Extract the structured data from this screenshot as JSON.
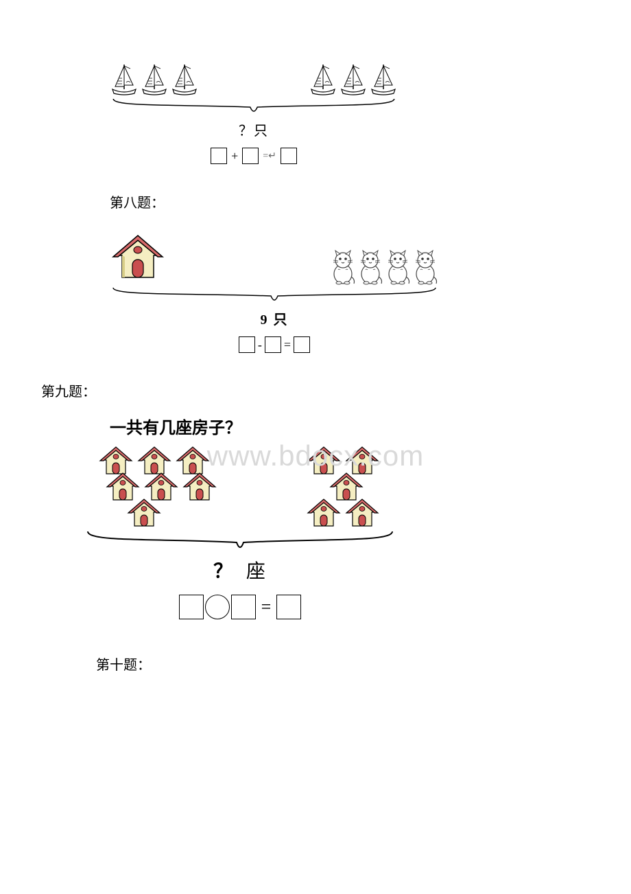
{
  "watermark": "www.bdocx.com",
  "q7": {
    "left_count": 3,
    "right_count": 3,
    "caption": "？只",
    "op_plus": "+",
    "op_eq_arrow": "=↵"
  },
  "q8": {
    "label": "第八题：",
    "cats": 4,
    "caption": "9  只",
    "op_minus": "-",
    "op_eq": "="
  },
  "q9": {
    "label": "第九题：",
    "title": "一共有几座房子？",
    "left_rows": [
      3,
      3,
      1
    ],
    "right_rows": [
      2,
      1,
      2
    ],
    "caption_q": "？",
    "caption_unit": "座",
    "op_eq": "="
  },
  "q10": {
    "label": "第十题："
  },
  "colors": {
    "house_roof": "#d86b6b",
    "house_wall": "#f5eec2",
    "house_wall_dark": "#d8ce88",
    "house_door": "#c94f4f",
    "outline": "#000000"
  }
}
